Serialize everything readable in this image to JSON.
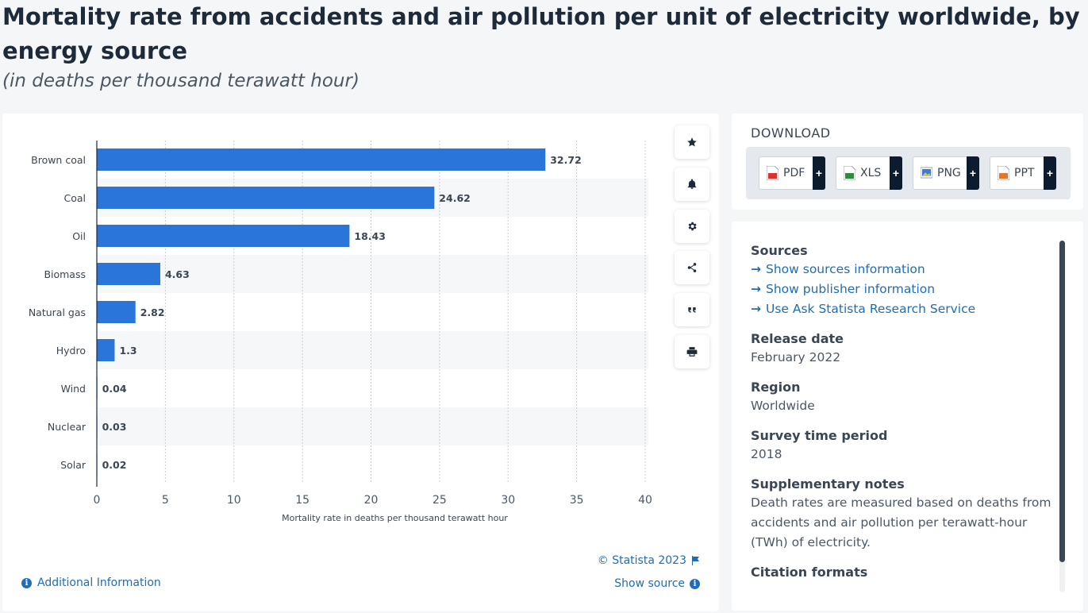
{
  "title": "Mortality rate from accidents and air pollution per unit of electricity worldwide, by energy source",
  "subtitle": "(in deaths per thousand terawatt hour)",
  "chart_data": {
    "type": "bar",
    "orientation": "horizontal",
    "categories": [
      "Brown coal",
      "Coal",
      "Oil",
      "Biomass",
      "Natural gas",
      "Hydro",
      "Wind",
      "Nuclear",
      "Solar"
    ],
    "values": [
      32.72,
      24.62,
      18.43,
      4.63,
      2.82,
      1.3,
      0.04,
      0.03,
      0.02
    ],
    "value_labels": [
      "32.72",
      "24.62",
      "18.43",
      "4.63",
      "2.82",
      "1.3",
      "0.04",
      "0.03",
      "0.02"
    ],
    "xlabel": "Mortality rate in deaths per thousand terawatt hour",
    "ylabel": "",
    "xlim": [
      0,
      40
    ],
    "xticks": [
      "0",
      "5",
      "10",
      "15",
      "20",
      "25",
      "30",
      "35",
      "40"
    ],
    "grid": "vertical-dotted",
    "bar_color": "#2a75d9"
  },
  "chart_footer": {
    "copyright": "© Statista 2023",
    "show_source": "Show source",
    "additional_info": "Additional Information"
  },
  "toolbar": {
    "icons": [
      "star-icon",
      "bell-icon",
      "gear-icon",
      "share-icon",
      "quote-icon",
      "print-icon"
    ]
  },
  "download": {
    "title": "DOWNLOAD",
    "buttons": [
      {
        "label": "PDF",
        "color": "#d9342b"
      },
      {
        "label": "XLS",
        "color": "#2e8b3e"
      },
      {
        "label": "PNG",
        "color": "#3a7bd5"
      },
      {
        "label": "PPT",
        "color": "#e8732a"
      }
    ],
    "plus": "+"
  },
  "info": {
    "sources_heading": "Sources",
    "links": [
      "Show sources information",
      "Show publisher information",
      "Use Ask Statista Research Service"
    ],
    "release_heading": "Release date",
    "release_value": "February 2022",
    "region_heading": "Region",
    "region_value": "Worldwide",
    "period_heading": "Survey time period",
    "period_value": "2018",
    "notes_heading": "Supplementary notes",
    "notes_value": "Death rates are measured based on deaths from accidents and air pollution per terawatt-hour (TWh) of electricity.",
    "citation_heading": "Citation formats"
  },
  "colors": {
    "accent": "#1f6db5",
    "dark": "#0d1b2e"
  }
}
